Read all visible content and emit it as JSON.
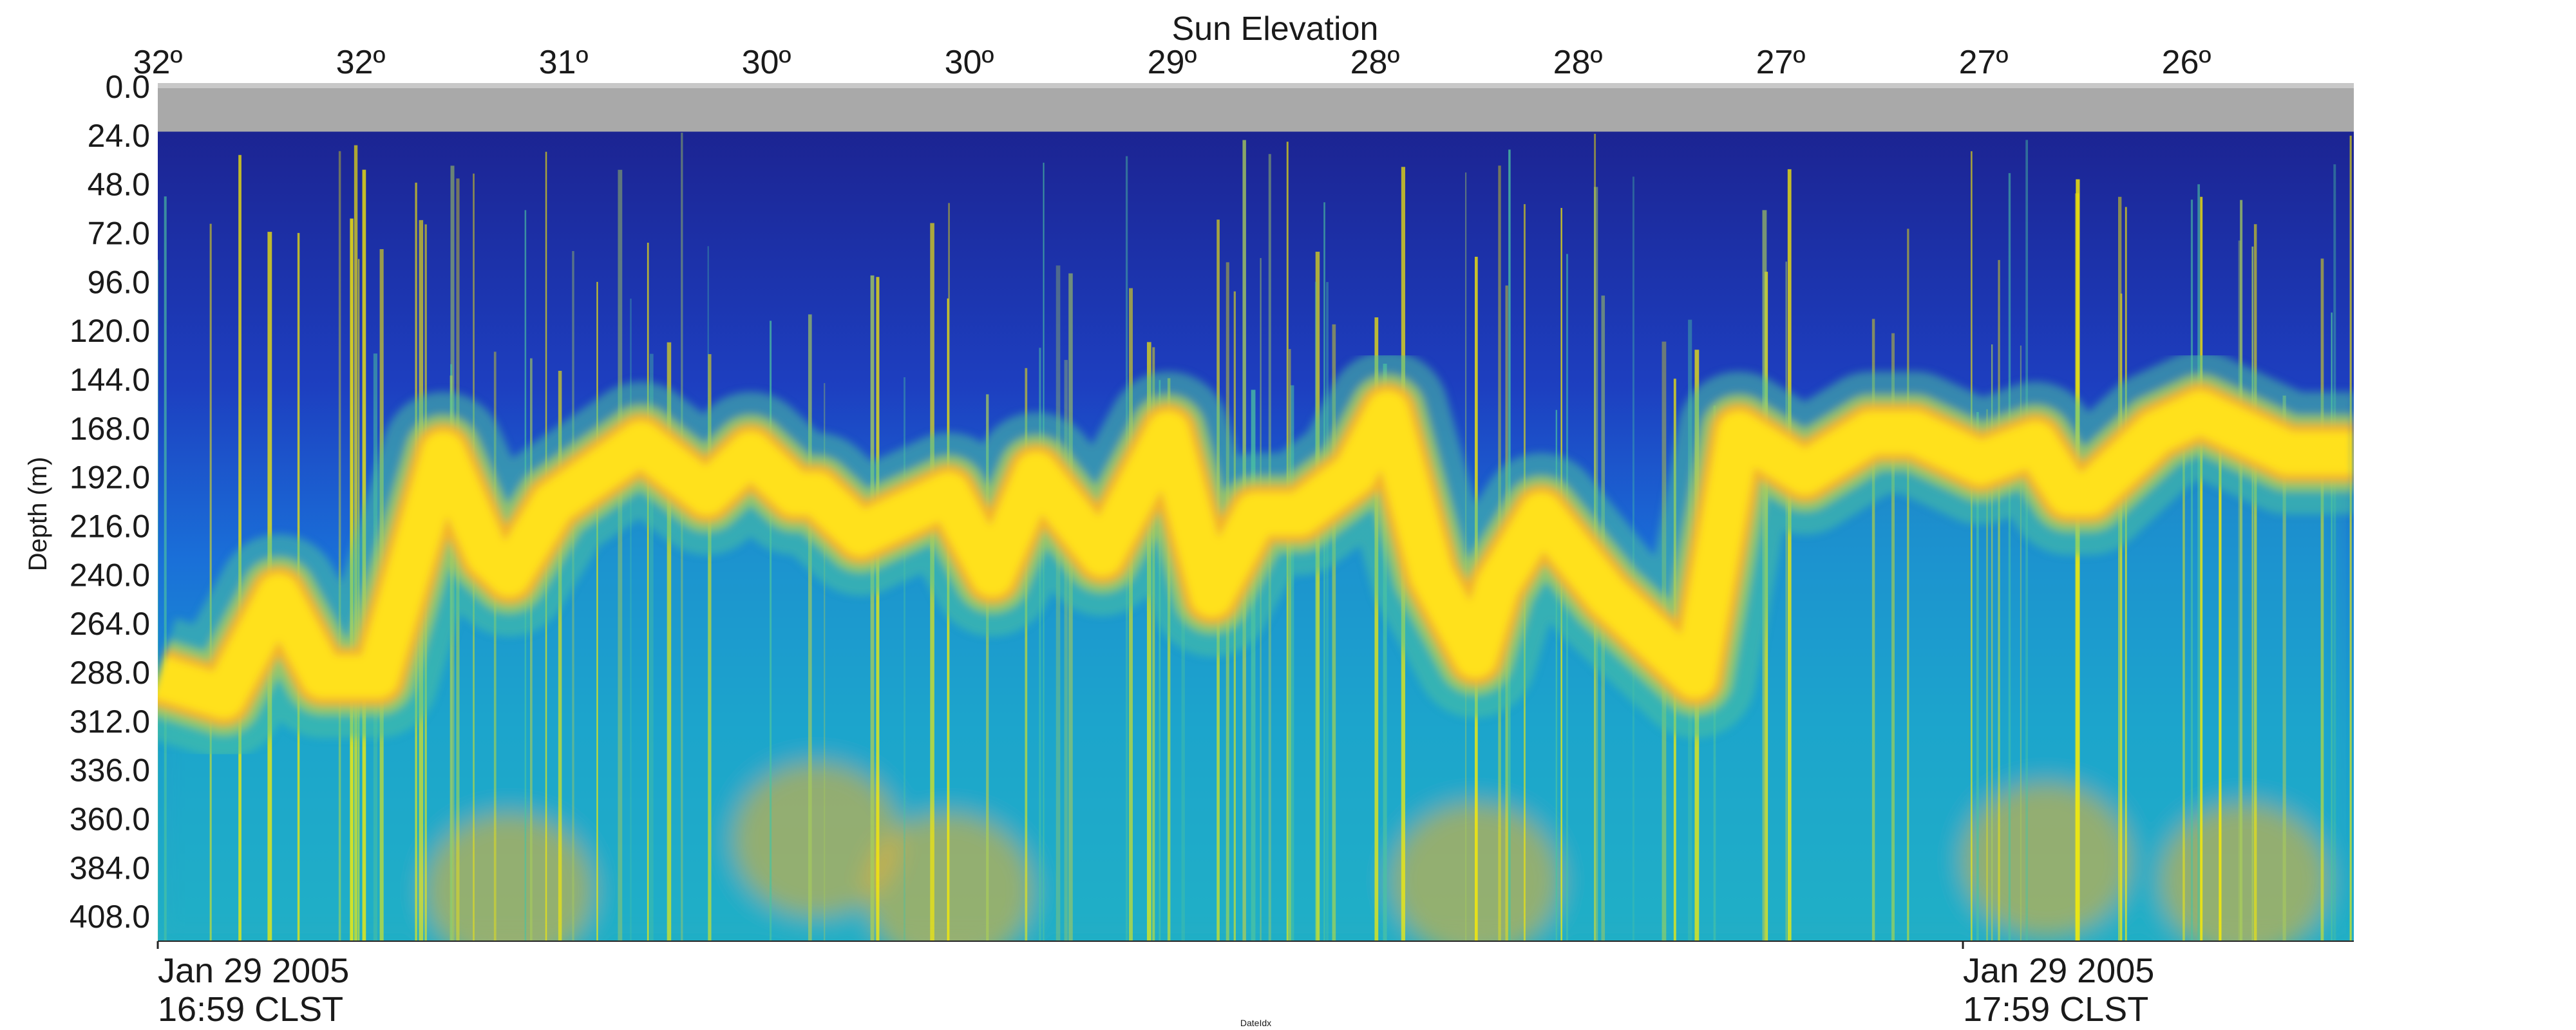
{
  "chart_data": {
    "type": "heatmap",
    "title": "Sun Elevation",
    "ylabel": "Depth (m)",
    "xlabel": "DateIdx",
    "top_axis_ticks": [
      "32º",
      "32º",
      "31º",
      "30º",
      "30º",
      "29º",
      "28º",
      "28º",
      "27º",
      "27º",
      "26º"
    ],
    "y_ticks": [
      0.0,
      24.0,
      48.0,
      72.0,
      96.0,
      120.0,
      144.0,
      168.0,
      192.0,
      216.0,
      240.0,
      264.0,
      288.0,
      312.0,
      336.0,
      360.0,
      384.0,
      408.0
    ],
    "y_tick_labels": [
      "0.0",
      "24.0",
      "48.0",
      "72.0",
      "96.0",
      "120.0",
      "144.0",
      "168.0",
      "192.0",
      "216.0",
      "240.0",
      "264.0",
      "288.0",
      "312.0",
      "336.0",
      "360.0",
      "384.0",
      "408.0"
    ],
    "ylim": [
      0,
      420
    ],
    "y_inverted": true,
    "no_data_band_depth": [
      0,
      22
    ],
    "grid": false,
    "x_labels": [
      {
        "date": "Jan 29 2005",
        "time": "16:59 CLST"
      },
      {
        "date": "Jan 29 2005",
        "time": "17:59 CLST"
      }
    ],
    "scattering_layer": {
      "description_free_trace": true,
      "time_fraction": [
        0.0,
        0.03,
        0.055,
        0.075,
        0.1,
        0.13,
        0.15,
        0.16,
        0.18,
        0.2,
        0.22,
        0.25,
        0.27,
        0.29,
        0.3,
        0.32,
        0.34,
        0.36,
        0.38,
        0.4,
        0.43,
        0.46,
        0.48,
        0.5,
        0.52,
        0.545,
        0.56,
        0.58,
        0.6,
        0.61,
        0.63,
        0.66,
        0.7,
        0.72,
        0.75,
        0.78,
        0.8,
        0.83,
        0.855,
        0.87,
        0.88,
        0.91,
        0.93,
        0.95,
        0.97,
        1.0
      ],
      "depth_m": [
        290,
        300,
        250,
        290,
        290,
        180,
        230,
        240,
        205,
        190,
        175,
        200,
        180,
        200,
        200,
        220,
        210,
        200,
        240,
        190,
        230,
        170,
        250,
        210,
        210,
        190,
        160,
        240,
        280,
        245,
        210,
        250,
        290,
        170,
        190,
        170,
        170,
        185,
        175,
        200,
        200,
        170,
        160,
        170,
        180,
        180
      ]
    },
    "colormap": [
      "#1b1f8a",
      "#1f4fd0",
      "#1a86d8",
      "#22b1c8",
      "#4cc3a0",
      "#a8cc5c",
      "#f2b32a",
      "#ffe11a",
      "#fff000"
    ],
    "no_data_color": "#a9a9a9"
  }
}
